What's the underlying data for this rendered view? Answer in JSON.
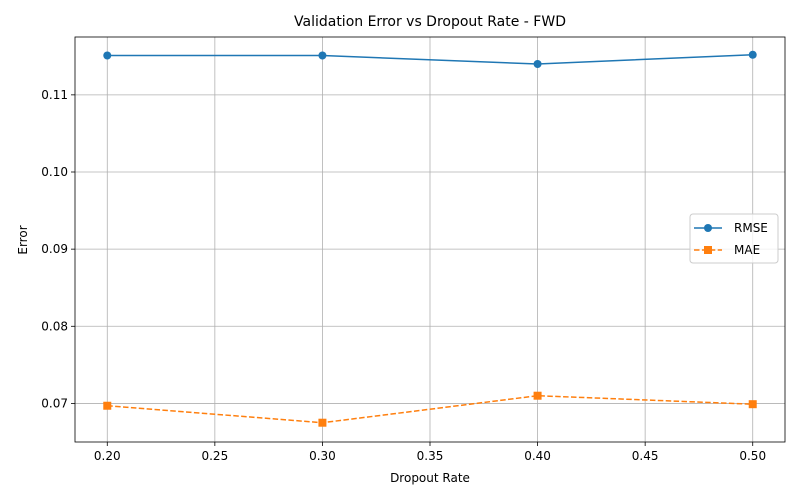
{
  "chart_data": {
    "type": "line",
    "title": "Validation Error vs Dropout Rate - FWD",
    "xlabel": "Dropout Rate",
    "ylabel": "Error",
    "xlim": [
      0.185,
      0.515
    ],
    "ylim": [
      0.065,
      0.1175
    ],
    "x": [
      0.2,
      0.3,
      0.4,
      0.5
    ],
    "x_ticks": [
      "0.20",
      "0.25",
      "0.30",
      "0.35",
      "0.40",
      "0.45",
      "0.50"
    ],
    "x_tick_values": [
      0.2,
      0.25,
      0.3,
      0.35,
      0.4,
      0.45,
      0.5
    ],
    "y_ticks": [
      "0.07",
      "0.08",
      "0.09",
      "0.10",
      "0.11"
    ],
    "y_tick_values": [
      0.07,
      0.08,
      0.09,
      0.1,
      0.11
    ],
    "grid": true,
    "legend_position": "center-right",
    "series": [
      {
        "name": "RMSE",
        "values": [
          0.1151,
          0.1151,
          0.114,
          0.1152
        ],
        "color": "#1f77b4",
        "marker": "circle",
        "line_style": "solid"
      },
      {
        "name": "MAE",
        "values": [
          0.0697,
          0.0675,
          0.071,
          0.0699
        ],
        "color": "#ff7f0e",
        "marker": "square",
        "line_style": "dashed"
      }
    ]
  }
}
